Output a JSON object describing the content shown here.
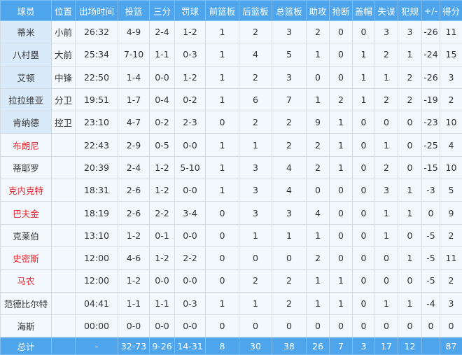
{
  "headers": [
    "球员",
    "位置",
    "出场时间",
    "投篮",
    "三分",
    "罚球",
    "前篮板",
    "后篮板",
    "总篮板",
    "助攻",
    "抢断",
    "盖帽",
    "失误",
    "犯规",
    "+/-",
    "得分"
  ],
  "colors": {
    "header_bg": "#4ea5ec",
    "starter_name_bg": "#d9eafb",
    "cell_bg": "#f3f8fd",
    "highlight_name": "#e8262d"
  },
  "rows": [
    {
      "name": "蒂米",
      "pos": "小前",
      "starter": true,
      "red": false,
      "stats": [
        "26:32",
        "4-9",
        "2-4",
        "1-2",
        "1",
        "2",
        "3",
        "2",
        "0",
        "0",
        "3",
        "3",
        "-26",
        "11"
      ]
    },
    {
      "name": "八村塁",
      "pos": "大前",
      "starter": true,
      "red": false,
      "stats": [
        "25:34",
        "7-10",
        "1-1",
        "0-3",
        "1",
        "4",
        "5",
        "1",
        "0",
        "1",
        "2",
        "1",
        "-24",
        "15"
      ]
    },
    {
      "name": "艾顿",
      "pos": "中锋",
      "starter": true,
      "red": false,
      "stats": [
        "22:50",
        "1-4",
        "0-0",
        "1-2",
        "1",
        "2",
        "3",
        "0",
        "0",
        "1",
        "1",
        "2",
        "-26",
        "3"
      ]
    },
    {
      "name": "拉拉维亚",
      "pos": "分卫",
      "starter": true,
      "red": false,
      "stats": [
        "19:51",
        "1-7",
        "0-4",
        "0-2",
        "1",
        "6",
        "7",
        "1",
        "2",
        "1",
        "2",
        "2",
        "-19",
        "2"
      ]
    },
    {
      "name": "肯纳德",
      "pos": "控卫",
      "starter": true,
      "red": false,
      "stats": [
        "23:10",
        "4-7",
        "0-2",
        "2-3",
        "0",
        "2",
        "2",
        "9",
        "1",
        "0",
        "0",
        "0",
        "-23",
        "10"
      ]
    },
    {
      "name": "布朗尼",
      "pos": "",
      "starter": false,
      "red": true,
      "stats": [
        "22:43",
        "2-9",
        "0-5",
        "0-0",
        "1",
        "1",
        "2",
        "2",
        "1",
        "0",
        "1",
        "0",
        "-25",
        "4"
      ]
    },
    {
      "name": "蒂耶罗",
      "pos": "",
      "starter": false,
      "red": false,
      "stats": [
        "20:39",
        "2-4",
        "1-2",
        "5-10",
        "1",
        "3",
        "4",
        "2",
        "1",
        "0",
        "2",
        "0",
        "-15",
        "10"
      ]
    },
    {
      "name": "克内克特",
      "pos": "",
      "starter": false,
      "red": true,
      "stats": [
        "18:31",
        "2-6",
        "1-2",
        "0-0",
        "1",
        "3",
        "4",
        "0",
        "0",
        "0",
        "3",
        "1",
        "-3",
        "5"
      ]
    },
    {
      "name": "巴夫金",
      "pos": "",
      "starter": false,
      "red": true,
      "stats": [
        "18:19",
        "2-6",
        "2-2",
        "3-4",
        "0",
        "3",
        "3",
        "4",
        "0",
        "0",
        "1",
        "1",
        "0",
        "9"
      ]
    },
    {
      "name": "克莱伯",
      "pos": "",
      "starter": false,
      "red": false,
      "stats": [
        "13:10",
        "1-2",
        "0-1",
        "0-0",
        "0",
        "1",
        "1",
        "1",
        "0",
        "0",
        "1",
        "0",
        "-5",
        "2"
      ]
    },
    {
      "name": "史密斯",
      "pos": "",
      "starter": false,
      "red": true,
      "stats": [
        "12:00",
        "4-6",
        "1-2",
        "2-2",
        "0",
        "0",
        "0",
        "2",
        "0",
        "0",
        "0",
        "1",
        "-5",
        "11"
      ]
    },
    {
      "name": "马农",
      "pos": "",
      "starter": false,
      "red": true,
      "stats": [
        "12:00",
        "1-2",
        "0-0",
        "0-0",
        "0",
        "2",
        "2",
        "1",
        "1",
        "0",
        "0",
        "0",
        "-5",
        "2"
      ]
    },
    {
      "name": "范德比尔特",
      "pos": "",
      "starter": false,
      "red": false,
      "stats": [
        "04:41",
        "1-1",
        "1-1",
        "0-3",
        "1",
        "1",
        "2",
        "1",
        "1",
        "0",
        "1",
        "1",
        "-4",
        "3"
      ]
    },
    {
      "name": "海斯",
      "pos": "",
      "starter": false,
      "red": false,
      "stats": [
        "00:00",
        "0-0",
        "0-0",
        "0-0",
        "0",
        "0",
        "0",
        "0",
        "0",
        "0",
        "0",
        "0",
        "0",
        "0"
      ]
    }
  ],
  "totals": {
    "label": "总计",
    "pos": "",
    "stats": [
      "-",
      "32-73",
      "9-26",
      "14-31",
      "8",
      "30",
      "38",
      "26",
      "7",
      "3",
      "17",
      "12",
      "",
      "87"
    ]
  }
}
